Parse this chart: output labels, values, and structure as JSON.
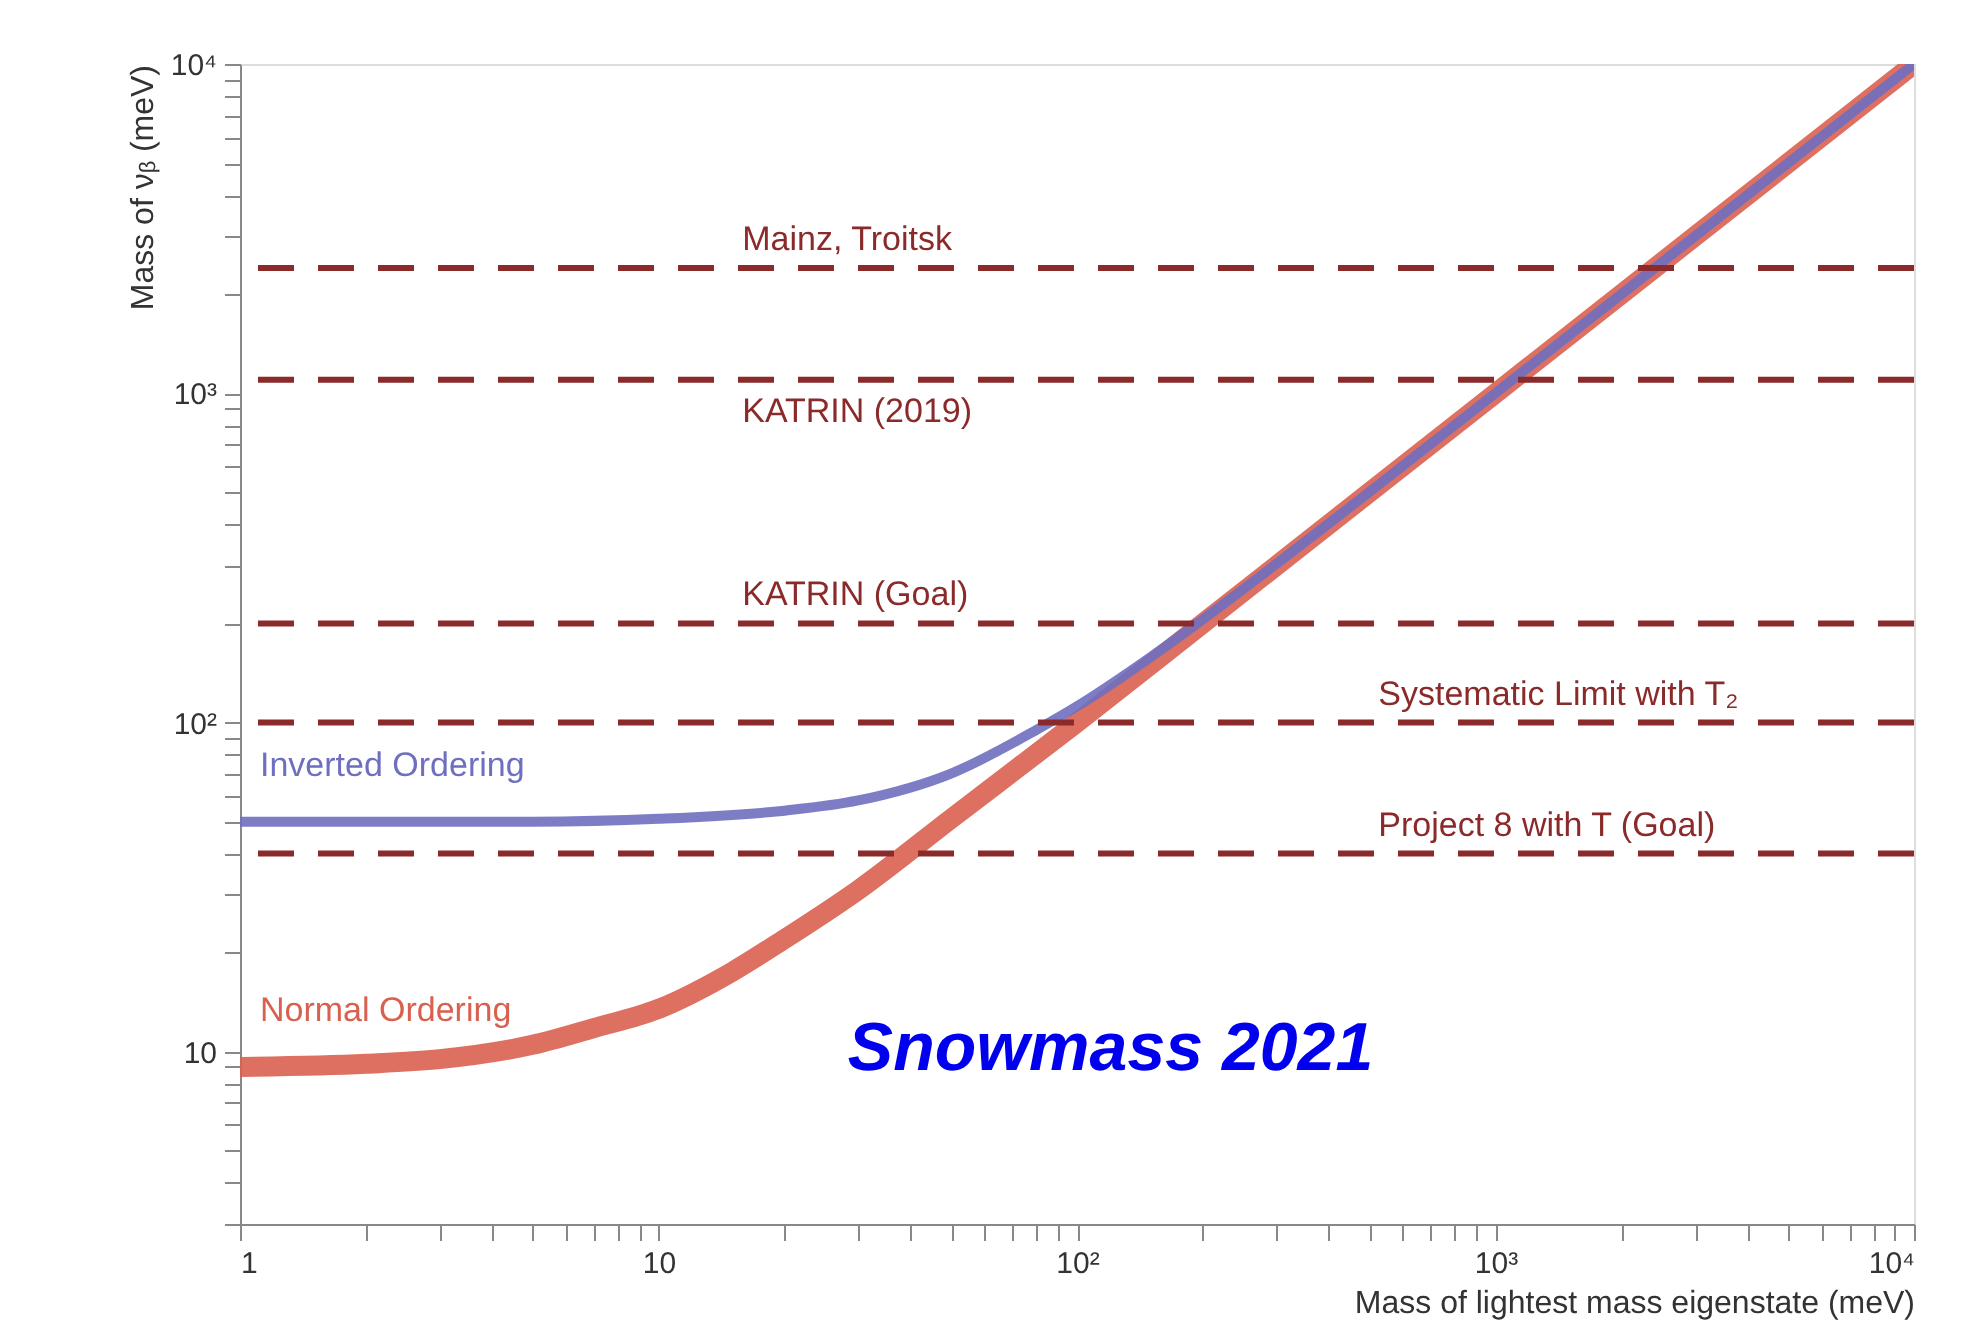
{
  "chart_data": {
    "type": "line",
    "xlabel": "Mass of lightest mass eigenstate (meV)",
    "ylabel": "Mass of νᵦ (meV)",
    "log": "xy",
    "grid": false,
    "marker": "none",
    "line_style": "solid",
    "xlim": [
      1,
      10000
    ],
    "ylim": [
      3,
      10000
    ],
    "xticks": [
      {
        "value": 1,
        "label": "1"
      },
      {
        "value": 2,
        "label": null
      },
      {
        "value": 3,
        "label": null
      },
      {
        "value": 4,
        "label": null
      },
      {
        "value": 5,
        "label": null
      },
      {
        "value": 6,
        "label": null
      },
      {
        "value": 7,
        "label": null
      },
      {
        "value": 8,
        "label": null
      },
      {
        "value": 9,
        "label": null
      },
      {
        "value": 10,
        "label": "10"
      },
      {
        "value": 20,
        "label": null
      },
      {
        "value": 30,
        "label": null
      },
      {
        "value": 40,
        "label": null
      },
      {
        "value": 50,
        "label": null
      },
      {
        "value": 60,
        "label": null
      },
      {
        "value": 70,
        "label": null
      },
      {
        "value": 80,
        "label": null
      },
      {
        "value": 90,
        "label": null
      },
      {
        "value": 100,
        "label": "10²"
      },
      {
        "value": 200,
        "label": null
      },
      {
        "value": 300,
        "label": null
      },
      {
        "value": 400,
        "label": null
      },
      {
        "value": 500,
        "label": null
      },
      {
        "value": 600,
        "label": null
      },
      {
        "value": 700,
        "label": null
      },
      {
        "value": 800,
        "label": null
      },
      {
        "value": 900,
        "label": null
      },
      {
        "value": 1000,
        "label": "10³"
      },
      {
        "value": 2000,
        "label": null
      },
      {
        "value": 3000,
        "label": null
      },
      {
        "value": 4000,
        "label": null
      },
      {
        "value": 5000,
        "label": null
      },
      {
        "value": 6000,
        "label": null
      },
      {
        "value": 7000,
        "label": null
      },
      {
        "value": 8000,
        "label": null
      },
      {
        "value": 9000,
        "label": null
      },
      {
        "value": 10000,
        "label": "10⁴"
      }
    ],
    "yticks": [
      {
        "value": 3,
        "label": null
      },
      {
        "value": 4,
        "label": null
      },
      {
        "value": 5,
        "label": null
      },
      {
        "value": 6,
        "label": null
      },
      {
        "value": 7,
        "label": null
      },
      {
        "value": 8,
        "label": null
      },
      {
        "value": 9,
        "label": null
      },
      {
        "value": 10,
        "label": "10"
      },
      {
        "value": 20,
        "label": null
      },
      {
        "value": 30,
        "label": null
      },
      {
        "value": 40,
        "label": null
      },
      {
        "value": 50,
        "label": null
      },
      {
        "value": 60,
        "label": null
      },
      {
        "value": 70,
        "label": null
      },
      {
        "value": 80,
        "label": null
      },
      {
        "value": 90,
        "label": null
      },
      {
        "value": 100,
        "label": "10²"
      },
      {
        "value": 200,
        "label": null
      },
      {
        "value": 300,
        "label": null
      },
      {
        "value": 400,
        "label": null
      },
      {
        "value": 500,
        "label": null
      },
      {
        "value": 600,
        "label": null
      },
      {
        "value": 700,
        "label": null
      },
      {
        "value": 800,
        "label": null
      },
      {
        "value": 900,
        "label": null
      },
      {
        "value": 1000,
        "label": "10³"
      },
      {
        "value": 2000,
        "label": null
      },
      {
        "value": 3000,
        "label": null
      },
      {
        "value": 4000,
        "label": null
      },
      {
        "value": 5000,
        "label": null
      },
      {
        "value": 6000,
        "label": null
      },
      {
        "value": 7000,
        "label": null
      },
      {
        "value": 8000,
        "label": null
      },
      {
        "value": 9000,
        "label": null
      },
      {
        "value": 10000,
        "label": "10⁴"
      }
    ],
    "series": [
      {
        "name": "Inverted Ordering",
        "color": "#6f6fc0",
        "x": [
          1,
          2,
          3,
          5,
          10,
          20,
          30,
          50,
          80,
          100,
          150,
          200,
          500,
          1000,
          3000,
          10000
        ],
        "values": [
          50,
          50,
          50,
          50,
          51,
          54,
          58,
          70,
          95,
          112,
          158,
          206,
          502,
          1001,
          3000,
          10000
        ]
      },
      {
        "name": "Normal Ordering",
        "color": "#d9604f",
        "x": [
          1,
          2,
          3,
          5,
          7,
          10,
          15,
          20,
          30,
          50,
          100,
          200,
          500,
          1000,
          3000,
          10000
        ],
        "values": [
          9,
          9.2,
          9.5,
          10.5,
          11.8,
          13.5,
          17.5,
          22,
          31,
          51,
          100,
          200,
          500,
          1000,
          3000,
          10000
        ]
      }
    ],
    "ref_lines": [
      {
        "axis": "y",
        "value": 2400,
        "label": "Mainz, Troitsk",
        "color": "#8b2a2a",
        "line_style": "dashed"
      },
      {
        "axis": "y",
        "value": 1100,
        "label": "KATRIN (2019)",
        "color": "#8b2a2a",
        "line_style": "dashed"
      },
      {
        "axis": "y",
        "value": 200,
        "label": "KATRIN (Goal)",
        "color": "#8b2a2a",
        "line_style": "dashed"
      },
      {
        "axis": "y",
        "value": 100,
        "label": "Systematic Limit with T₂",
        "color": "#8b2a2a",
        "line_style": "dashed"
      },
      {
        "axis": "y",
        "value": 40,
        "label": "Project 8 with T (Goal)",
        "color": "#8b2a2a",
        "line_style": "dashed"
      }
    ],
    "annotations": [
      "Snowmass 2021"
    ]
  }
}
